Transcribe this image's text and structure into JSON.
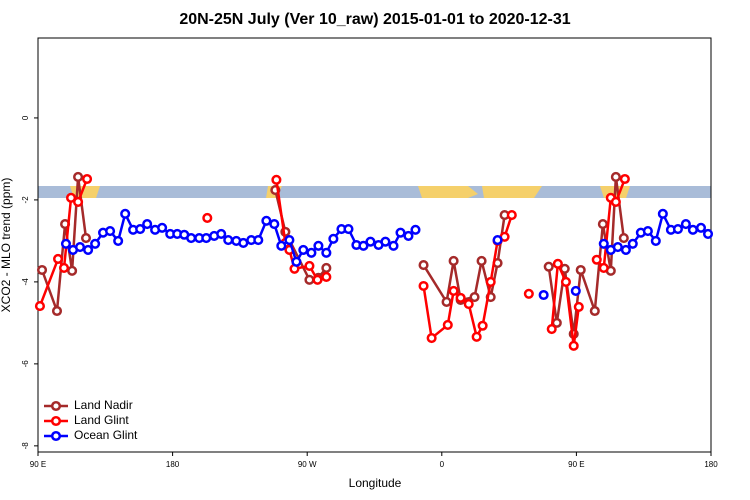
{
  "chart_data": {
    "type": "line",
    "title": "20N-25N July (Ver 10_raw)   2015-01-01 to 2020-12-31",
    "x_label": "Longitude",
    "y_label": "XCO2 - MLO trend (ppm)",
    "xlim": [
      90,
      540
    ],
    "xticks": [
      {
        "value": 90,
        "label": "90 E"
      },
      {
        "value": 180,
        "label": "180"
      },
      {
        "value": 270,
        "label": "90 W"
      },
      {
        "value": 360,
        "label": "0"
      },
      {
        "value": 450,
        "label": "90 E"
      },
      {
        "value": 540,
        "label": "180"
      }
    ],
    "ylim": [
      -8.15,
      1.95
    ],
    "yticks": [
      0,
      -2,
      -4,
      -6,
      -8
    ],
    "legend": "bottomleft",
    "series": [
      {
        "name": "Land Nadir",
        "color": "#a52a2a",
        "x": [
          92.7,
          102.7,
          108.1,
          112.8,
          116.8,
          122.1,
          null,
          248.7,
          255.4,
          271.5,
          277.5,
          282.8,
          null,
          347.8,
          363.2,
          367.9,
          372.6,
          381.9,
          386.6,
          392.7,
          397.3,
          402.0,
          null,
          431.5,
          436.9,
          442.2,
          448.2,
          452.9,
          462.3,
          467.7,
          473.0,
          476.4,
          481.7
        ],
        "values": [
          -3.71,
          -4.71,
          -2.59,
          -3.73,
          -1.44,
          -2.93,
          null,
          -1.76,
          -2.78,
          -3.95,
          -3.9,
          -3.66,
          null,
          -3.59,
          -4.49,
          -3.49,
          -4.44,
          -4.37,
          -3.49,
          -4.37,
          -3.54,
          -2.37,
          null,
          -3.63,
          -5.0,
          -3.68,
          -5.27,
          -3.71,
          -4.71,
          -2.59,
          -3.73,
          -1.44,
          -2.93
        ]
      },
      {
        "name": "Land Glint",
        "color": "#ff0000",
        "x": [
          91.3,
          103.4,
          107.4,
          112.1,
          116.8,
          122.8,
          null,
          203.2,
          null,
          249.4,
          255.4,
          258.1,
          261.5,
          271.5,
          276.9,
          282.8,
          null,
          347.8,
          353.2,
          364.0,
          367.9,
          372.6,
          378.0,
          383.3,
          387.3,
          392.7,
          397.3,
          402.0,
          406.8,
          null,
          418.2,
          null,
          433.5,
          437.6,
          443.0,
          448.2,
          451.6,
          null,
          463.6,
          468.3,
          473.0,
          476.4,
          482.4
        ],
        "values": [
          -4.59,
          -3.44,
          -3.66,
          -1.95,
          -2.05,
          -1.49,
          null,
          -2.44,
          null,
          -1.51,
          -3.05,
          -3.22,
          -3.68,
          -3.61,
          -3.95,
          -3.88,
          null,
          -4.1,
          -5.37,
          -5.05,
          -4.22,
          -4.39,
          -4.54,
          -5.34,
          -5.07,
          -4.0,
          -3.0,
          -2.9,
          -2.37,
          null,
          -4.29,
          null,
          -5.15,
          -3.56,
          -4.0,
          -5.56,
          -4.61,
          null,
          -3.46,
          -3.66,
          -1.95,
          -2.05,
          -1.49
        ]
      },
      {
        "name": "Ocean Glint",
        "color": "#0000ff",
        "x": [
          108.7,
          113.4,
          118.1,
          123.5,
          128.2,
          133.5,
          138.2,
          143.6,
          148.3,
          153.6,
          158.3,
          163.0,
          168.3,
          173.0,
          178.4,
          183.1,
          187.8,
          192.4,
          197.8,
          202.5,
          207.8,
          212.5,
          217.2,
          222.6,
          227.3,
          232.6,
          237.3,
          242.7,
          248.0,
          252.7,
          258.1,
          262.8,
          267.4,
          272.8,
          277.5,
          282.8,
          287.5,
          292.9,
          297.6,
          302.9,
          307.6,
          312.3,
          317.7,
          322.3,
          327.7,
          332.4,
          337.7,
          342.4,
          null,
          397.3,
          null,
          428.1,
          null,
          449.6,
          null,
          468.3,
          473.0,
          477.7,
          483.1,
          487.7,
          493.1,
          497.8,
          503.1,
          507.8,
          513.2,
          517.9,
          523.2,
          527.9,
          533.3,
          538.0
        ],
        "values": [
          -3.07,
          -3.22,
          -3.15,
          -3.22,
          -3.07,
          -2.8,
          -2.76,
          -3.0,
          -2.34,
          -2.73,
          -2.71,
          -2.59,
          -2.73,
          -2.68,
          -2.83,
          -2.83,
          -2.85,
          -2.93,
          -2.93,
          -2.93,
          -2.88,
          -2.83,
          -2.98,
          -3.0,
          -3.05,
          -2.98,
          -2.98,
          -2.51,
          -2.59,
          -3.12,
          -2.98,
          -3.51,
          -3.22,
          -3.29,
          -3.12,
          -3.29,
          -2.95,
          -2.71,
          -2.71,
          -3.1,
          -3.12,
          -3.02,
          -3.1,
          -3.02,
          -3.12,
          -2.8,
          -2.88,
          -2.73,
          null,
          -2.98,
          null,
          -4.32,
          null,
          -4.22,
          null,
          -3.07,
          -3.22,
          -3.15,
          -3.22,
          -3.07,
          -2.8,
          -2.76,
          -3.0,
          -2.34,
          -2.73,
          -2.71,
          -2.59,
          -2.73,
          -2.68,
          -2.83
        ]
      }
    ]
  }
}
